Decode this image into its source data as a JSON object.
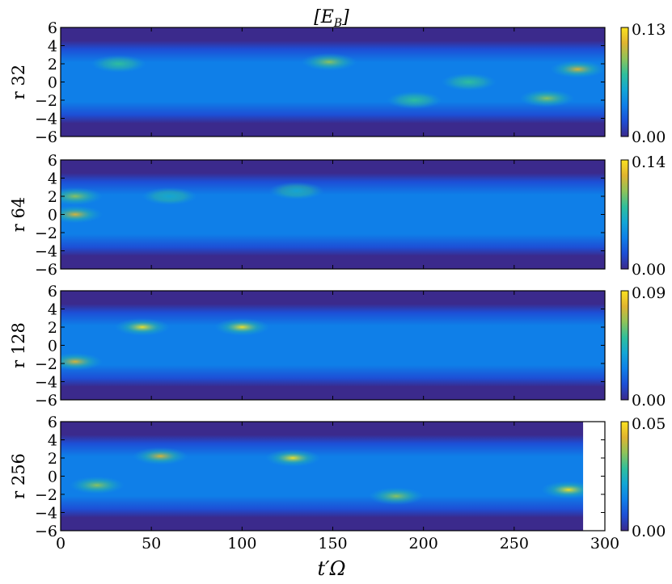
{
  "figure": {
    "title": "[E_B]",
    "xlabel": "t′Ω"
  },
  "colormap": [
    "#3b2a8c",
    "#1d4fd6",
    "#0f7fe8",
    "#13a6d6",
    "#2fbf9c",
    "#8fc35a",
    "#e0b430",
    "#fbe21f"
  ],
  "chart_data": [
    {
      "type": "heatmap",
      "panel_label": "r32",
      "x_ticks": [
        0,
        50,
        100,
        150,
        200,
        250,
        300
      ],
      "y_ticks": [
        6,
        4,
        2,
        0,
        -2,
        -4,
        -6
      ],
      "xlim": [
        0,
        300
      ],
      "ylim": [
        -6,
        6
      ],
      "colorbar": {
        "min": "0.00",
        "max": "0.13"
      },
      "data_extent_x": 300,
      "hotspots": [
        {
          "x": 32,
          "y": 2.0,
          "value": 0.07
        },
        {
          "x": 148,
          "y": 2.2,
          "value": 0.08
        },
        {
          "x": 225,
          "y": 0.0,
          "value": 0.06
        },
        {
          "x": 285,
          "y": 1.4,
          "value": 0.11
        },
        {
          "x": 268,
          "y": -1.8,
          "value": 0.08
        },
        {
          "x": 195,
          "y": -2.0,
          "value": 0.06
        }
      ]
    },
    {
      "type": "heatmap",
      "panel_label": "r64",
      "x_ticks": [
        0,
        50,
        100,
        150,
        200,
        250,
        300
      ],
      "y_ticks": [
        6,
        4,
        2,
        0,
        -2,
        -4,
        -6
      ],
      "xlim": [
        0,
        300
      ],
      "ylim": [
        -6,
        6
      ],
      "colorbar": {
        "min": "0.00",
        "max": "0.14"
      },
      "data_extent_x": 300,
      "hotspots": [
        {
          "x": 8,
          "y": 0.0,
          "value": 0.12
        },
        {
          "x": 8,
          "y": 2.0,
          "value": 0.08
        },
        {
          "x": 60,
          "y": 2.0,
          "value": 0.06
        },
        {
          "x": 130,
          "y": 2.6,
          "value": 0.05
        }
      ]
    },
    {
      "type": "heatmap",
      "panel_label": "r128",
      "x_ticks": [
        0,
        50,
        100,
        150,
        200,
        250,
        300
      ],
      "y_ticks": [
        6,
        4,
        2,
        0,
        -2,
        -4,
        -6
      ],
      "xlim": [
        0,
        300
      ],
      "ylim": [
        -6,
        6
      ],
      "colorbar": {
        "min": "0.00",
        "max": "0.09"
      },
      "data_extent_x": 300,
      "hotspots": [
        {
          "x": 45,
          "y": 2.0,
          "value": 0.08
        },
        {
          "x": 100,
          "y": 2.0,
          "value": 0.08
        },
        {
          "x": 8,
          "y": -1.8,
          "value": 0.07
        }
      ]
    },
    {
      "type": "heatmap",
      "panel_label": "r256",
      "x_ticks": [
        0,
        50,
        100,
        150,
        200,
        250,
        300
      ],
      "y_ticks": [
        6,
        4,
        2,
        0,
        -2,
        -4,
        -6
      ],
      "xlim": [
        0,
        300
      ],
      "ylim": [
        -6,
        6
      ],
      "colorbar": {
        "min": "0.00",
        "max": "0.05"
      },
      "data_extent_x": 288,
      "hotspots": [
        {
          "x": 55,
          "y": 2.2,
          "value": 0.04
        },
        {
          "x": 128,
          "y": 2.0,
          "value": 0.045
        },
        {
          "x": 280,
          "y": -1.5,
          "value": 0.045
        },
        {
          "x": 20,
          "y": -1.0,
          "value": 0.035
        },
        {
          "x": 185,
          "y": -2.2,
          "value": 0.035
        }
      ]
    }
  ]
}
